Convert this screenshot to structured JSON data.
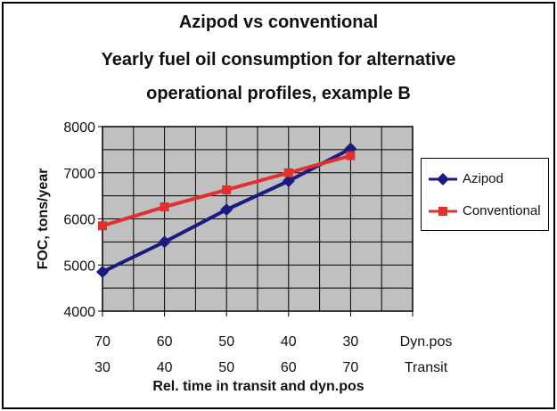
{
  "chart_data": {
    "type": "line",
    "title": "Azipod vs conventional",
    "subtitle_lines": [
      "Yearly fuel oil consumption for alternative",
      "operational profiles, example B"
    ],
    "ylabel": "FOC, tons/year",
    "xlabel": "Rel. time in transit and dyn.pos",
    "ylim": [
      4000,
      8000
    ],
    "yticks": [
      4000,
      5000,
      6000,
      7000,
      8000
    ],
    "x_row1": [
      "70",
      "60",
      "50",
      "40",
      "30",
      "Dyn.pos"
    ],
    "x_row2": [
      "30",
      "40",
      "50",
      "60",
      "70",
      "Transit"
    ],
    "series": [
      {
        "name": "Azipod",
        "color": "#1a1a80",
        "marker": "diamond",
        "values": [
          4850,
          5500,
          6200,
          6820,
          7520
        ]
      },
      {
        "name": "Conventional",
        "color": "#e03030",
        "marker": "square",
        "values": [
          5850,
          6260,
          6630,
          7000,
          7370
        ]
      }
    ],
    "grid": true,
    "plot_background": "#c0c0c0",
    "legend_position": "right"
  }
}
